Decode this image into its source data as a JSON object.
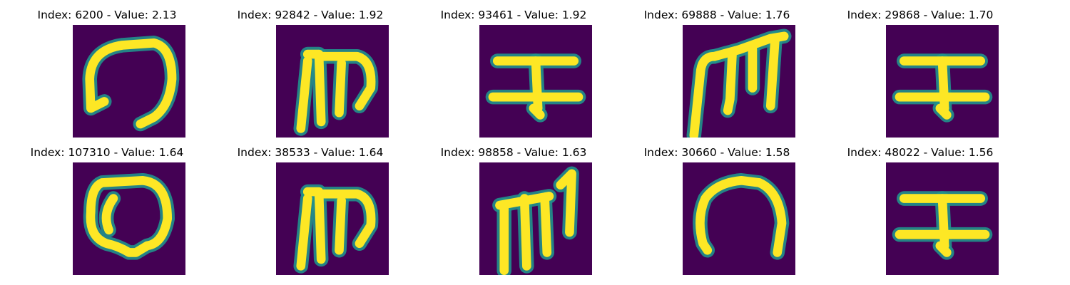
{
  "chart_data": {
    "type": "heatmap",
    "colors": {
      "background": "#440154",
      "mid": "#21918c",
      "high": "#fde725"
    },
    "panels": [
      {
        "title": "Index: 6200 - Value: 2.13",
        "index": 6200,
        "value": 2.13,
        "glyph": "hook-loop"
      },
      {
        "title": "Index: 92842 - Value: 1.92",
        "index": 92842,
        "value": 1.92,
        "glyph": "m-shape"
      },
      {
        "title": "Index: 93461 - Value: 1.92",
        "index": 93461,
        "value": 1.92,
        "glyph": "double-bar-cross"
      },
      {
        "title": "Index: 69888 - Value: 1.76",
        "index": 69888,
        "value": 1.76,
        "glyph": "m-slanted"
      },
      {
        "title": "Index: 29868 - Value: 1.70",
        "index": 29868,
        "value": 1.7,
        "glyph": "double-bar-cross"
      },
      {
        "title": "Index: 107310 - Value: 1.64",
        "index": 107310,
        "value": 1.64,
        "glyph": "closed-loop"
      },
      {
        "title": "Index: 38533 - Value: 1.64",
        "index": 38533,
        "value": 1.64,
        "glyph": "m-shape"
      },
      {
        "title": "Index: 98858 - Value: 1.63",
        "index": 98858,
        "value": 1.63,
        "glyph": "triple-stroke"
      },
      {
        "title": "Index: 30660 - Value: 1.58",
        "index": 30660,
        "value": 1.58,
        "glyph": "arch"
      },
      {
        "title": "Index: 48022 - Value: 1.56",
        "index": 48022,
        "value": 1.56,
        "glyph": "double-bar-cross"
      }
    ]
  }
}
